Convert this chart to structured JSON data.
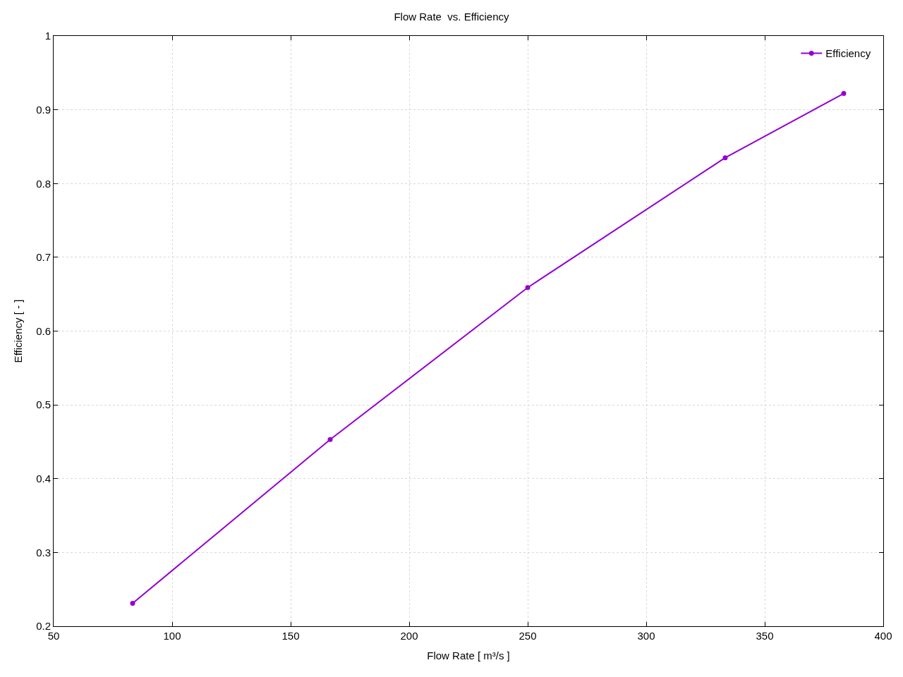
{
  "chart_data": {
    "type": "line",
    "title": "Flow Rate  vs. Efficiency",
    "xlabel": "Flow Rate [ m³/s ]",
    "ylabel": "Efficiency [ - ]",
    "x": [
      83.33,
      166.67,
      250,
      333.33,
      383.33
    ],
    "series": [
      {
        "name": "Efficiency",
        "color": "#9400d3",
        "values": [
          0.231,
          0.453,
          0.659,
          0.835,
          0.922
        ]
      }
    ],
    "xlim": [
      50,
      400
    ],
    "xticks": [
      50,
      100,
      150,
      200,
      250,
      300,
      350,
      400
    ],
    "ylim": [
      0.2,
      1
    ],
    "yticks": [
      0.2,
      0.3,
      0.4,
      0.5,
      0.6,
      0.7,
      0.8,
      0.9,
      1
    ],
    "grid": true,
    "legend": "top right",
    "marker": "circle",
    "line_style": "solid"
  }
}
